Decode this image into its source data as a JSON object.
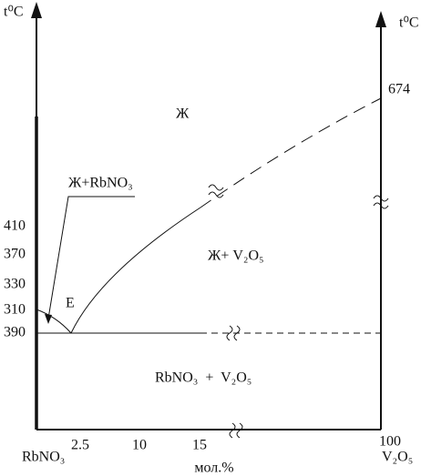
{
  "axes": {
    "left_unit": "t⁰C",
    "right_unit": "t⁰C",
    "right_value": "674",
    "x_unit": "мол.%",
    "left_component": "RbNO₃",
    "right_component": "V₂O₅",
    "y_labels": [
      "410",
      "370",
      "330",
      "310",
      "390"
    ],
    "x_labels": [
      "2.5",
      "10",
      "15",
      "100"
    ]
  },
  "regions": {
    "liquid": "Ж",
    "liquid_rbno3": "Ж+RbNO₃",
    "eutectic": "E",
    "liquid_v2o5": "Ж+ V₂O₅",
    "solid": "RbNO₃  +  V₂O₅"
  }
}
